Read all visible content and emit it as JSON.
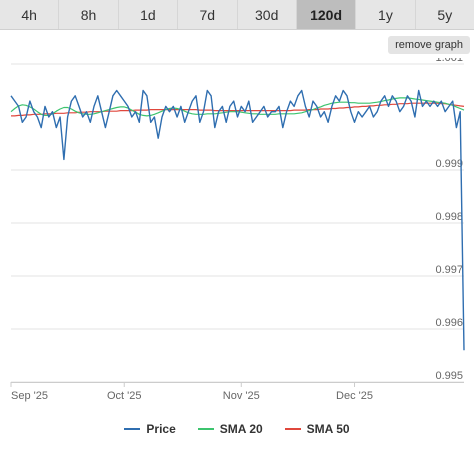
{
  "tabs": [
    {
      "label": "4h"
    },
    {
      "label": "8h"
    },
    {
      "label": "1d"
    },
    {
      "label": "7d"
    },
    {
      "label": "30d"
    },
    {
      "label": "120d",
      "active": true
    },
    {
      "label": "1y"
    },
    {
      "label": "5y"
    }
  ],
  "remove_graph_label": "remove graph",
  "chart_data": {
    "type": "line",
    "ylim": [
      0.995,
      1.001
    ],
    "y_ticks": [
      "1.001",
      "0.999",
      "0.998",
      "0.997",
      "0.996",
      "0.995"
    ],
    "x_ticks": [
      "Sep '25",
      "Oct '25",
      "Nov '25",
      "Dec '25"
    ],
    "x_range_days": [
      0,
      120
    ],
    "x_tick_days": [
      0,
      30,
      61,
      91
    ],
    "grid": true,
    "legend_position": "bottom",
    "series": [
      {
        "name": "Price",
        "color": "#2f6eb0",
        "values": [
          1.0004,
          1.0003,
          1.0002,
          0.9999,
          1.0,
          1.0003,
          1.0001,
          1.0,
          0.9998,
          1.0002,
          1.0,
          1.0001,
          0.9998,
          1.0,
          0.9992,
          1.0,
          1.0003,
          1.0004,
          1.0002,
          1.0,
          1.0001,
          0.9999,
          1.0002,
          1.0004,
          1.0001,
          0.9998,
          1.0001,
          1.0004,
          1.0005,
          1.0004,
          1.0003,
          1.0002,
          1.0,
          1.0001,
          0.9999,
          1.0005,
          1.0004,
          0.9999,
          1.0,
          0.9996,
          1.0,
          1.0002,
          1.0001,
          1.0002,
          1.0,
          1.0002,
          0.9999,
          1.0001,
          1.0003,
          1.0004,
          0.9999,
          1.0001,
          1.0005,
          1.0004,
          0.9998,
          1.0001,
          1.0002,
          0.9999,
          1.0002,
          1.0003,
          1.0,
          1.0002,
          1.0001,
          1.0003,
          0.9999,
          1.0,
          1.0001,
          1.0002,
          1.0,
          1.0001,
          1.0001,
          1.0002,
          0.9998,
          1.0001,
          1.0003,
          1.0002,
          1.0004,
          1.0005,
          1.0002,
          1.0,
          1.0003,
          1.0002,
          1.0,
          1.0001,
          0.9999,
          1.0002,
          1.0004,
          1.0003,
          1.0005,
          1.0004,
          1.0001,
          0.9999,
          1.0001,
          1.0,
          1.0001,
          1.0002,
          1.0,
          1.0001,
          1.0003,
          1.0004,
          1.0002,
          1.0004,
          1.0003,
          1.0001,
          1.0002,
          1.0004,
          1.0003,
          1.0,
          1.0005,
          1.0002,
          1.0003,
          1.0002,
          1.0003,
          1.0002,
          1.0003,
          1.0001,
          1.0002,
          1.0003,
          0.9998,
          1.0001,
          0.9956
        ]
      },
      {
        "name": "SMA 20",
        "color": "#3cc46e",
        "values": [
          1.0001,
          1.00016,
          1.00021,
          1.00023,
          1.00022,
          1.00019,
          1.00015,
          1.0001,
          1.00005,
          1.00003,
          1.00003,
          1.00006,
          1.00011,
          1.00015,
          1.00018,
          1.00018,
          1.00015,
          1.00011,
          1.00008,
          1.00006,
          1.00005,
          1.00005,
          1.00006,
          1.00008,
          1.0001,
          1.00012,
          1.00014,
          1.00016,
          1.00018,
          1.00019,
          1.00019,
          1.00017,
          1.00013,
          1.00009,
          1.00005,
          1.00003,
          1.00002,
          1.00003,
          1.00005,
          1.00008,
          1.00011,
          1.00014,
          1.00016,
          1.00017,
          1.00016,
          1.00014,
          1.00011,
          1.00008,
          1.00006,
          1.00005,
          1.00005,
          1.00005,
          1.00006,
          1.00006,
          1.00006,
          1.00007,
          1.00008,
          1.00009,
          1.0001,
          1.0001,
          1.0001,
          1.00009,
          1.00008,
          1.00007,
          1.00006,
          1.00006,
          1.00005,
          1.00005,
          1.00005,
          1.00005,
          1.00005,
          1.00006,
          1.00006,
          1.00006,
          1.00006,
          1.00006,
          1.00007,
          1.00008,
          1.0001,
          1.00012,
          1.00014,
          1.00017,
          1.00019,
          1.00022,
          1.00024,
          1.00026,
          1.00027,
          1.00028,
          1.00028,
          1.00028,
          1.00027,
          1.00027,
          1.00026,
          1.00026,
          1.00026,
          1.00026,
          1.00027,
          1.00028,
          1.00029,
          1.00031,
          1.00032,
          1.00034,
          1.00035,
          1.00036,
          1.00036,
          1.00036,
          1.00035,
          1.00034,
          1.00033,
          1.00032,
          1.00031,
          1.0003,
          1.00029,
          1.00028,
          1.00027,
          1.00026,
          1.00024,
          1.00022,
          1.00019,
          1.00016,
          1.00013
        ]
      },
      {
        "name": "SMA 50",
        "color": "#e0473c",
        "values": [
          1.00002,
          1.00002,
          1.00003,
          1.00003,
          1.00004,
          1.00004,
          1.00005,
          1.00005,
          1.00005,
          1.00006,
          1.00006,
          1.00006,
          1.00007,
          1.00007,
          1.00007,
          1.00008,
          1.00008,
          1.00008,
          1.00009,
          1.00009,
          1.00009,
          1.0001,
          1.0001,
          1.0001,
          1.0001,
          1.00011,
          1.00011,
          1.00011,
          1.00011,
          1.00012,
          1.00012,
          1.00012,
          1.00012,
          1.00013,
          1.00013,
          1.00013,
          1.00013,
          1.00014,
          1.00014,
          1.00014,
          1.00014,
          1.00014,
          1.00014,
          1.00014,
          1.00014,
          1.00014,
          1.00014,
          1.00014,
          1.00014,
          1.00014,
          1.00013,
          1.00013,
          1.00013,
          1.00013,
          1.00012,
          1.00012,
          1.00012,
          1.00012,
          1.00012,
          1.00012,
          1.00012,
          1.00012,
          1.00012,
          1.00012,
          1.00012,
          1.00012,
          1.00012,
          1.00012,
          1.00012,
          1.00012,
          1.00012,
          1.00012,
          1.00012,
          1.00012,
          1.00012,
          1.00013,
          1.00013,
          1.00013,
          1.00013,
          1.00014,
          1.00014,
          1.00014,
          1.00015,
          1.00015,
          1.00015,
          1.00016,
          1.00016,
          1.00017,
          1.00017,
          1.00018,
          1.00018,
          1.00019,
          1.00019,
          1.0002,
          1.0002,
          1.00021,
          1.00021,
          1.00022,
          1.00022,
          1.00023,
          1.00023,
          1.00024,
          1.00024,
          1.00025,
          1.00025,
          1.00025,
          1.00026,
          1.00026,
          1.00026,
          1.00026,
          1.00026,
          1.00026,
          1.00026,
          1.00026,
          1.00025,
          1.00025,
          1.00024,
          1.00023,
          1.00022,
          1.00021,
          1.0002
        ]
      }
    ]
  }
}
